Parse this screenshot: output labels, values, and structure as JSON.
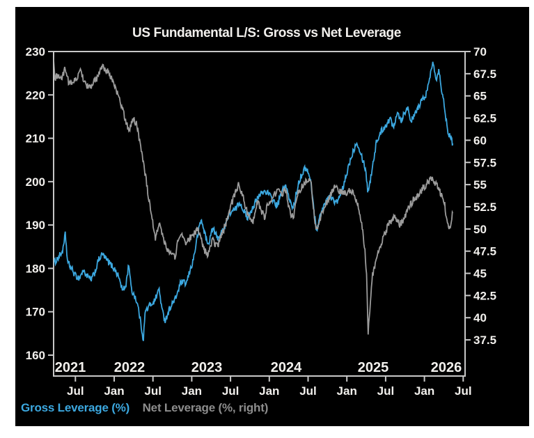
{
  "page": {
    "background": "#ffffff",
    "panel_background": "#000000",
    "text_color": "#f2f0ed",
    "frame_color": "#c8c8c8"
  },
  "title": "US Fundamental L/S: Gross vs Net Leverage",
  "legend": [
    {
      "label": "Gross Leverage (%)",
      "color": "#3ca8e0"
    },
    {
      "label": "Net Leverage (%, right)",
      "color": "#8d8d8d"
    }
  ],
  "chart_data": {
    "type": "line",
    "title": "US Fundamental L/S: Gross vs Net Leverage",
    "grid": false,
    "legend_position": "bottom-left",
    "x_axis": {
      "range_years": [
        2021.215,
        2026.55
      ],
      "month_ticks": [
        {
          "label": "Jul",
          "t": 2021.5
        },
        {
          "label": "Jan",
          "t": 2022.0
        },
        {
          "label": "Jul",
          "t": 2022.5
        },
        {
          "label": "Jan",
          "t": 2023.0
        },
        {
          "label": "Jul",
          "t": 2023.5
        },
        {
          "label": "Jan",
          "t": 2024.0
        },
        {
          "label": "Jul",
          "t": 2024.5
        },
        {
          "label": "Jan",
          "t": 2025.0
        },
        {
          "label": "Jul",
          "t": 2025.5
        },
        {
          "label": "Jan",
          "t": 2026.0
        },
        {
          "label": "Jul",
          "t": 2026.5
        }
      ],
      "year_labels": [
        "2021",
        "2022",
        "2023",
        "2024",
        "2025",
        "2026"
      ]
    },
    "left_axis": {
      "label": "Gross Leverage (%)",
      "min": 160,
      "max": 230,
      "ticks": [
        230,
        220,
        210,
        200,
        190,
        180,
        170,
        160
      ]
    },
    "right_axis": {
      "label": "Net Leverage (%)",
      "min": 37.5,
      "max": 70,
      "ticks": [
        70,
        67.5,
        65,
        62.5,
        60,
        57.5,
        55,
        52.5,
        50,
        47.5,
        45,
        42.5,
        40,
        37.5
      ]
    },
    "series": [
      {
        "name": "Gross Leverage (%)",
        "axis": "left",
        "color": "#3ca8e0",
        "noise_amplitude": 0.75,
        "points": [
          [
            2021.215,
            181.0
          ],
          [
            2021.27,
            182.3
          ],
          [
            2021.32,
            183.5
          ],
          [
            2021.345,
            184.5
          ],
          [
            2021.37,
            188.0
          ],
          [
            2021.4,
            181.3
          ],
          [
            2021.44,
            180.3
          ],
          [
            2021.5,
            178.3
          ],
          [
            2021.55,
            177.8
          ],
          [
            2021.6,
            179.5
          ],
          [
            2021.65,
            178.3
          ],
          [
            2021.7,
            177.3
          ],
          [
            2021.75,
            179.0
          ],
          [
            2021.8,
            182.0
          ],
          [
            2021.85,
            183.3
          ],
          [
            2021.9,
            182.0
          ],
          [
            2021.95,
            181.0
          ],
          [
            2022.0,
            180.0
          ],
          [
            2022.06,
            178.0
          ],
          [
            2022.11,
            174.8
          ],
          [
            2022.15,
            176.0
          ],
          [
            2022.19,
            181.3
          ],
          [
            2022.22,
            175.0
          ],
          [
            2022.27,
            173.5
          ],
          [
            2022.31,
            171.0
          ],
          [
            2022.355,
            166.0
          ],
          [
            2022.375,
            163.5
          ],
          [
            2022.4,
            170.0
          ],
          [
            2022.46,
            171.5
          ],
          [
            2022.52,
            172.5
          ],
          [
            2022.58,
            175.3
          ],
          [
            2022.62,
            170.0
          ],
          [
            2022.66,
            168.0
          ],
          [
            2022.72,
            171.0
          ],
          [
            2022.79,
            173.0
          ],
          [
            2022.86,
            176.8
          ],
          [
            2022.93,
            176.5
          ],
          [
            2023.02,
            182.0
          ],
          [
            2023.08,
            188.0
          ],
          [
            2023.12,
            191.3
          ],
          [
            2023.17,
            188.0
          ],
          [
            2023.21,
            185.3
          ],
          [
            2023.27,
            189.3
          ],
          [
            2023.33,
            187.0
          ],
          [
            2023.38,
            188.0
          ],
          [
            2023.44,
            190.5
          ],
          [
            2023.5,
            193.0
          ],
          [
            2023.56,
            193.5
          ],
          [
            2023.62,
            195.3
          ],
          [
            2023.68,
            193.0
          ],
          [
            2023.71,
            191.5
          ],
          [
            2023.77,
            193.5
          ],
          [
            2023.83,
            195.5
          ],
          [
            2023.9,
            197.5
          ],
          [
            2023.96,
            197.8
          ],
          [
            2024.04,
            196.0
          ],
          [
            2024.1,
            194.3
          ],
          [
            2024.16,
            197.5
          ],
          [
            2024.21,
            199.3
          ],
          [
            2024.27,
            195.0
          ],
          [
            2024.31,
            194.0
          ],
          [
            2024.38,
            200.0
          ],
          [
            2024.44,
            202.5
          ],
          [
            2024.48,
            203.3
          ],
          [
            2024.54,
            199.5
          ],
          [
            2024.58,
            192.5
          ],
          [
            2024.61,
            188.8
          ],
          [
            2024.67,
            193.0
          ],
          [
            2024.73,
            195.5
          ],
          [
            2024.79,
            196.8
          ],
          [
            2024.85,
            195.0
          ],
          [
            2024.9,
            196.0
          ],
          [
            2024.96,
            199.0
          ],
          [
            2025.02,
            203.5
          ],
          [
            2025.08,
            207.0
          ],
          [
            2025.13,
            209.3
          ],
          [
            2025.19,
            206.0
          ],
          [
            2025.24,
            203.0
          ],
          [
            2025.27,
            197.8
          ],
          [
            2025.3,
            200.0
          ],
          [
            2025.33,
            203.5
          ],
          [
            2025.38,
            209.0
          ],
          [
            2025.44,
            211.5
          ],
          [
            2025.5,
            213.0
          ],
          [
            2025.56,
            214.5
          ],
          [
            2025.6,
            212.5
          ],
          [
            2025.65,
            216.3
          ],
          [
            2025.7,
            214.0
          ],
          [
            2025.74,
            216.0
          ],
          [
            2025.79,
            217.0
          ],
          [
            2025.83,
            213.8
          ],
          [
            2025.88,
            215.5
          ],
          [
            2025.93,
            217.5
          ],
          [
            2025.98,
            219.0
          ],
          [
            2026.03,
            220.5
          ],
          [
            2026.07,
            224.0
          ],
          [
            2026.11,
            228.0
          ],
          [
            2026.14,
            225.0
          ],
          [
            2026.16,
            223.5
          ],
          [
            2026.185,
            226.3
          ],
          [
            2026.22,
            221.5
          ],
          [
            2026.26,
            217.0
          ],
          [
            2026.3,
            212.0
          ],
          [
            2026.33,
            210.3
          ],
          [
            2026.365,
            208.8
          ]
        ]
      },
      {
        "name": "Net Leverage (%, right)",
        "axis": "right",
        "color": "#9c9c9c",
        "noise_amplitude": 0.4,
        "points": [
          [
            2021.215,
            69.2
          ],
          [
            2021.235,
            67.0
          ],
          [
            2021.28,
            67.3
          ],
          [
            2021.33,
            67.0
          ],
          [
            2021.37,
            68.2
          ],
          [
            2021.42,
            66.3
          ],
          [
            2021.47,
            66.6
          ],
          [
            2021.52,
            67.0
          ],
          [
            2021.57,
            67.8
          ],
          [
            2021.62,
            66.6
          ],
          [
            2021.67,
            65.9
          ],
          [
            2021.72,
            66.3
          ],
          [
            2021.78,
            67.0
          ],
          [
            2021.84,
            68.3
          ],
          [
            2021.89,
            68.0
          ],
          [
            2021.94,
            67.5
          ],
          [
            2021.99,
            66.5
          ],
          [
            2022.06,
            64.8
          ],
          [
            2022.13,
            62.8
          ],
          [
            2022.19,
            61.0
          ],
          [
            2022.24,
            62.5
          ],
          [
            2022.29,
            61.8
          ],
          [
            2022.38,
            57.5
          ],
          [
            2022.46,
            52.5
          ],
          [
            2022.53,
            48.9
          ],
          [
            2022.58,
            50.9
          ],
          [
            2022.63,
            49.0
          ],
          [
            2022.7,
            47.5
          ],
          [
            2022.78,
            46.8
          ],
          [
            2022.85,
            49.6
          ],
          [
            2022.92,
            48.4
          ],
          [
            2023.02,
            49.4
          ],
          [
            2023.08,
            49.9
          ],
          [
            2023.14,
            48.2
          ],
          [
            2023.2,
            46.9
          ],
          [
            2023.27,
            48.7
          ],
          [
            2023.33,
            48.0
          ],
          [
            2023.38,
            49.2
          ],
          [
            2023.44,
            50.6
          ],
          [
            2023.5,
            52.5
          ],
          [
            2023.56,
            54.0
          ],
          [
            2023.6,
            55.0
          ],
          [
            2023.65,
            54.0
          ],
          [
            2023.7,
            52.2
          ],
          [
            2023.75,
            51.4
          ],
          [
            2023.79,
            51.0
          ],
          [
            2023.85,
            53.0
          ],
          [
            2023.9,
            52.0
          ],
          [
            2023.94,
            51.4
          ],
          [
            2023.98,
            52.8
          ],
          [
            2024.04,
            53.4
          ],
          [
            2024.1,
            54.4
          ],
          [
            2024.16,
            54.0
          ],
          [
            2024.21,
            54.4
          ],
          [
            2024.27,
            51.8
          ],
          [
            2024.31,
            51.2
          ],
          [
            2024.36,
            53.8
          ],
          [
            2024.42,
            54.8
          ],
          [
            2024.48,
            55.4
          ],
          [
            2024.54,
            55.3
          ],
          [
            2024.585,
            50.8
          ],
          [
            2024.62,
            49.8
          ],
          [
            2024.68,
            52.0
          ],
          [
            2024.74,
            53.0
          ],
          [
            2024.79,
            53.9
          ],
          [
            2024.85,
            54.8
          ],
          [
            2024.9,
            54.3
          ],
          [
            2024.96,
            53.9
          ],
          [
            2025.02,
            54.3
          ],
          [
            2025.08,
            54.0
          ],
          [
            2025.13,
            53.2
          ],
          [
            2025.19,
            50.5
          ],
          [
            2025.23,
            48.0
          ],
          [
            2025.255,
            44.5
          ],
          [
            2025.275,
            38.3
          ],
          [
            2025.3,
            41.5
          ],
          [
            2025.33,
            44.8
          ],
          [
            2025.38,
            46.5
          ],
          [
            2025.42,
            47.8
          ],
          [
            2025.48,
            49.3
          ],
          [
            2025.54,
            50.5
          ],
          [
            2025.58,
            51.0
          ],
          [
            2025.63,
            51.3
          ],
          [
            2025.68,
            50.5
          ],
          [
            2025.72,
            50.8
          ],
          [
            2025.79,
            52.2
          ],
          [
            2025.85,
            53.2
          ],
          [
            2025.92,
            53.8
          ],
          [
            2025.98,
            54.6
          ],
          [
            2026.04,
            55.2
          ],
          [
            2026.1,
            55.7
          ],
          [
            2026.15,
            55.0
          ],
          [
            2026.2,
            54.2
          ],
          [
            2026.26,
            52.8
          ],
          [
            2026.3,
            50.3
          ],
          [
            2026.33,
            50.0
          ],
          [
            2026.365,
            51.8
          ]
        ]
      }
    ]
  }
}
